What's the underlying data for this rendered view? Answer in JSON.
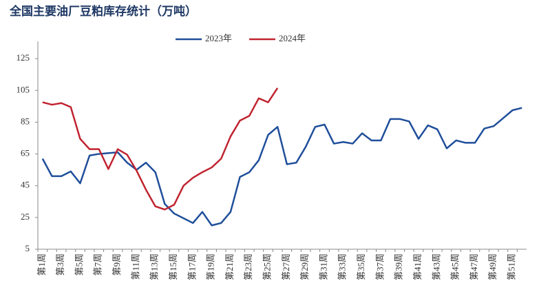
{
  "chart_data": {
    "type": "line",
    "title": "全国主要油厂豆粕库存统计（万吨）",
    "categories": [
      "第1周",
      null,
      "第3周",
      null,
      "第5周",
      null,
      "第7周",
      null,
      "第9周",
      null,
      "第11周",
      null,
      "第13周",
      null,
      "第15周",
      null,
      "第17周",
      null,
      "第19周",
      null,
      "第21周",
      null,
      "第23周",
      null,
      "第25周",
      null,
      "第27周",
      null,
      "第29周",
      null,
      "第31周",
      null,
      "第33周",
      null,
      "第35周",
      null,
      "第37周",
      null,
      "第39周",
      null,
      "第41周",
      null,
      "第43周",
      null,
      "第45周",
      null,
      "第47周",
      null,
      "第49周",
      null,
      "第51周",
      null
    ],
    "series": [
      {
        "name": "2023年",
        "color": "#1f4e9a",
        "values": [
          62,
          51,
          51,
          54,
          46.5,
          64,
          65,
          65.5,
          66,
          59.5,
          55,
          59.5,
          53.5,
          33.5,
          27.5,
          24.5,
          21.5,
          28.5,
          20,
          21.5,
          28.5,
          50.5,
          53.5,
          61,
          77,
          82,
          58.5,
          59.5,
          69.5,
          82,
          83.5,
          71.5,
          72.5,
          71.5,
          78,
          73.5,
          73.5,
          87,
          87,
          85.5,
          74.5,
          83,
          80.5,
          68.5,
          73.5,
          72,
          72,
          81,
          82.5,
          87.5,
          92.5,
          94
        ]
      },
      {
        "name": "2024年",
        "color": "#c0232f",
        "values": [
          97.5,
          96,
          97,
          94.5,
          74.5,
          68,
          68,
          55.5,
          68,
          64.5,
          54.5,
          42.5,
          32,
          30,
          33,
          45,
          50,
          53.5,
          56.5,
          62,
          76,
          86,
          89,
          100,
          97.5,
          106.5,
          null,
          null,
          null,
          null,
          null,
          null,
          null,
          null,
          null,
          null,
          null,
          null,
          null,
          null,
          null,
          null,
          null,
          null,
          null,
          null,
          null,
          null,
          null,
          null,
          null,
          null
        ]
      }
    ],
    "ylim": [
      5,
      145
    ],
    "yticks": [
      5,
      25,
      45,
      65,
      85,
      105,
      125
    ],
    "grid": false,
    "legend": "top"
  }
}
